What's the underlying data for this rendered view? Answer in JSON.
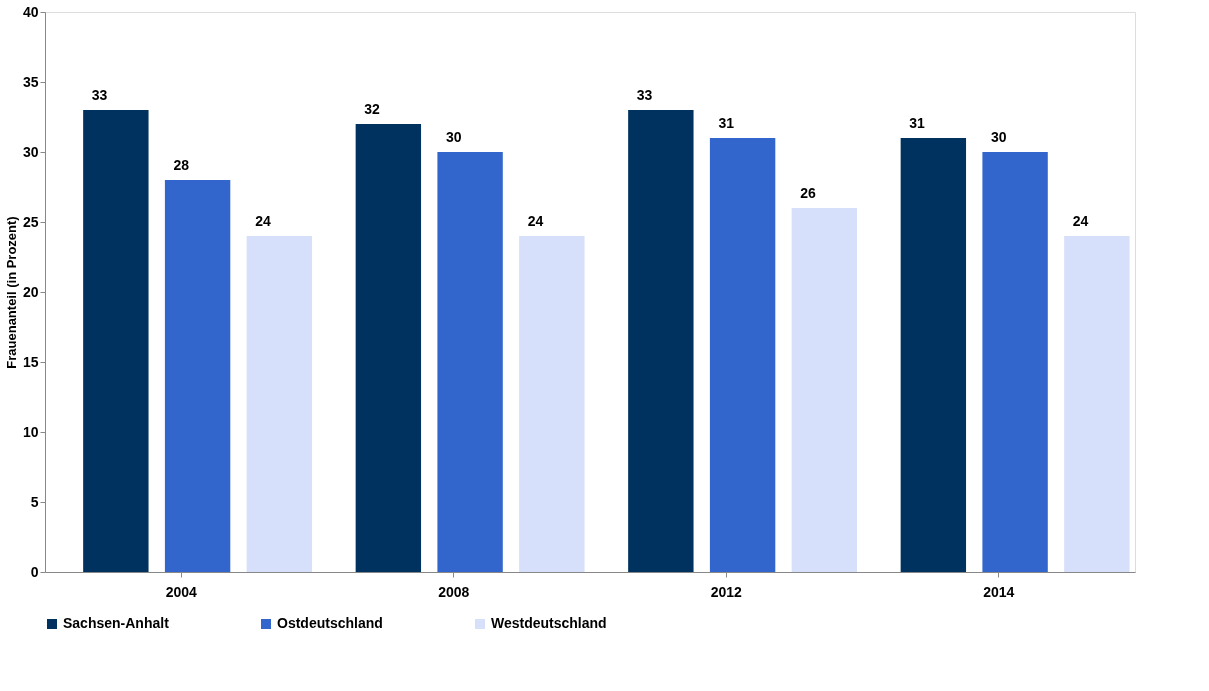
{
  "chart_data": {
    "type": "bar",
    "ylabel": "Frauenanteil (in Prozent)",
    "categories": [
      "2004",
      "2008",
      "2012",
      "2014"
    ],
    "series": [
      {
        "name": "Sachsen-Anhalt",
        "color": "#00325f",
        "values": [
          33,
          32,
          33,
          31
        ]
      },
      {
        "name": "Ostdeutschland",
        "color": "#3366cc",
        "values": [
          28,
          30,
          31,
          30
        ]
      },
      {
        "name": "Westdeutschland",
        "color": "#d7e0fa",
        "values": [
          24,
          24,
          26,
          24
        ]
      }
    ],
    "ylim": [
      0,
      40
    ],
    "yticks": [
      0,
      5,
      10,
      15,
      20,
      25,
      30,
      35,
      40
    ],
    "grid": false,
    "legend": "bottom",
    "data_labels": true
  }
}
